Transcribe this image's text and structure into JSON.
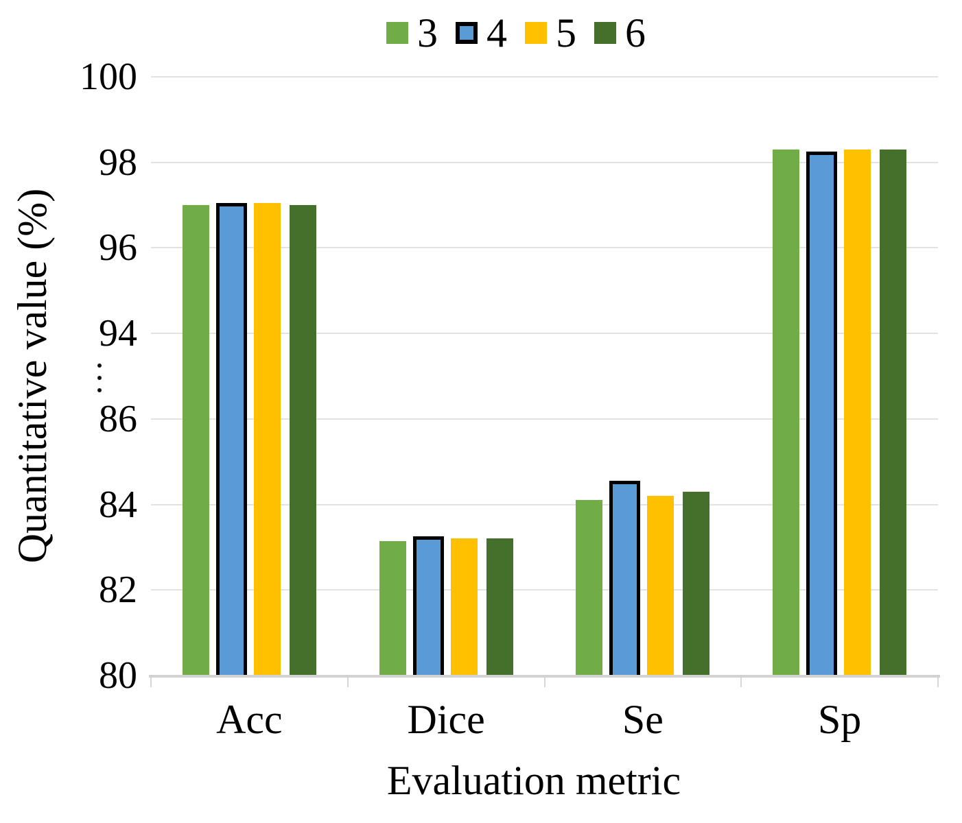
{
  "legend": {
    "items": [
      {
        "label": "3",
        "color": "#70AD47",
        "outlined": false
      },
      {
        "label": "4",
        "color": "#5B9BD5",
        "outlined": true
      },
      {
        "label": "5",
        "color": "#FFC000",
        "outlined": false
      },
      {
        "label": "6",
        "color": "#45702B",
        "outlined": false
      }
    ]
  },
  "chart_data": {
    "type": "bar",
    "title": "",
    "xlabel": "Evaluation metric",
    "ylabel": "Quantitative value (%)",
    "categories": [
      "Acc",
      "Dice",
      "Se",
      "Sp"
    ],
    "series": [
      {
        "name": "3",
        "color": "#70AD47",
        "outlined": false,
        "outline_color": null,
        "values": [
          97.0,
          83.15,
          84.1,
          98.3
        ]
      },
      {
        "name": "4",
        "color": "#5B9BD5",
        "outlined": true,
        "outline_color": "#000000",
        "values": [
          97.05,
          83.25,
          84.55,
          98.25
        ]
      },
      {
        "name": "5",
        "color": "#FFC000",
        "outlined": false,
        "outline_color": null,
        "values": [
          97.05,
          83.2,
          84.2,
          98.3
        ]
      },
      {
        "name": "6",
        "color": "#45702B",
        "outlined": false,
        "outline_color": null,
        "values": [
          97.0,
          83.2,
          84.3,
          98.3
        ]
      }
    ],
    "y_axis": {
      "broken": true,
      "segments": [
        [
          80,
          86
        ],
        [
          94,
          100
        ]
      ],
      "tick_step": 2,
      "tick_values": [
        80,
        82,
        84,
        86,
        94,
        96,
        98,
        100
      ],
      "break_symbol": "⋮"
    },
    "grid": true,
    "legend_position": "top",
    "colors": {
      "gridline": "#E2E2E2",
      "axis_line": "#D2D2D2",
      "axis_tick": "#D6D6D6",
      "text": "#000000"
    }
  }
}
